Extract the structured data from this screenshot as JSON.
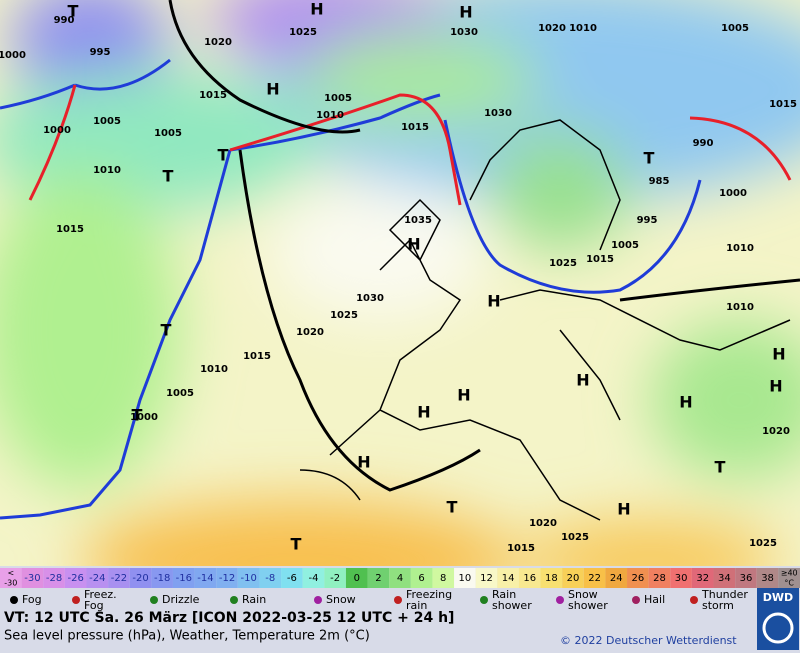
{
  "map": {
    "pressure_labels": [
      "1020",
      "1025",
      "1030",
      "1020",
      "1010",
      "1005",
      "1015",
      "990",
      "985",
      "995",
      "1000",
      "1005",
      "1010",
      "1025",
      "1015",
      "1030",
      "1015",
      "1010",
      "1005",
      "1005",
      "1015",
      "1005",
      "1000",
      "1010",
      "995",
      "990",
      "1000",
      "1015",
      "1035",
      "1030",
      "1025",
      "1020",
      "1015",
      "1010",
      "1005",
      "1000",
      "1020",
      "1025",
      "1015",
      "1020",
      "1025",
      "1010"
    ],
    "high_labels": [
      "H",
      "H",
      "H",
      "H",
      "H",
      "H",
      "H",
      "H",
      "H",
      "H",
      "H",
      "H",
      "H"
    ],
    "low_labels": [
      "T",
      "T",
      "T",
      "T",
      "T",
      "T",
      "T",
      "T",
      "T"
    ]
  },
  "color_scale": {
    "low": {
      "top": "<",
      "bottom": "-30",
      "color": "#e8a0e8"
    },
    "cells": [
      {
        "label": "-30",
        "color": "#e090e0"
      },
      {
        "label": "-28",
        "color": "#d890e8"
      },
      {
        "label": "-26",
        "color": "#c890f0"
      },
      {
        "label": "-24",
        "color": "#b890f0"
      },
      {
        "label": "-22",
        "color": "#a890f0"
      },
      {
        "label": "-20",
        "color": "#9090f0"
      },
      {
        "label": "-18",
        "color": "#8898f0"
      },
      {
        "label": "-16",
        "color": "#80a0f0"
      },
      {
        "label": "-14",
        "color": "#80a8f0"
      },
      {
        "label": "-12",
        "color": "#80b0f0"
      },
      {
        "label": "-10",
        "color": "#80c0f0"
      },
      {
        "label": "-8",
        "color": "#80d0f0"
      },
      {
        "label": "-6",
        "color": "#80e0f0"
      },
      {
        "label": "-4",
        "color": "#90f0e0"
      },
      {
        "label": "-2",
        "color": "#90f0c0"
      },
      {
        "label": "0",
        "color": "#50c050"
      },
      {
        "label": "2",
        "color": "#70d070"
      },
      {
        "label": "4",
        "color": "#90e080"
      },
      {
        "label": "6",
        "color": "#b0f090"
      },
      {
        "label": "8",
        "color": "#d0f8a0"
      },
      {
        "label": "10",
        "color": "#fafaf0"
      },
      {
        "label": "12",
        "color": "#f8f8c8"
      },
      {
        "label": "14",
        "color": "#f8f0a8"
      },
      {
        "label": "16",
        "color": "#f8e890"
      },
      {
        "label": "18",
        "color": "#f8e070"
      },
      {
        "label": "20",
        "color": "#f8d058"
      },
      {
        "label": "22",
        "color": "#f8c048"
      },
      {
        "label": "24",
        "color": "#f0a840"
      },
      {
        "label": "26",
        "color": "#f09050"
      },
      {
        "label": "28",
        "color": "#f08060"
      },
      {
        "label": "30",
        "color": "#f07070"
      },
      {
        "label": "32",
        "color": "#e06878"
      },
      {
        "label": "34",
        "color": "#d07078"
      },
      {
        "label": "36",
        "color": "#c07880"
      },
      {
        "label": "38",
        "color": "#b08888"
      }
    ],
    "high": {
      "top": "≥40",
      "bottom": "°C",
      "color": "#a09090"
    }
  },
  "weather_legend": [
    {
      "label": [
        "Fog"
      ]
    },
    {
      "label": [
        "Freez.",
        "Fog"
      ]
    },
    {
      "label": [
        "Drizzle"
      ]
    },
    {
      "label": [
        "Rain"
      ]
    },
    {
      "label": [
        "Snow"
      ]
    },
    {
      "label": [
        "Freezing",
        "rain"
      ]
    },
    {
      "label": [
        "Rain",
        "shower"
      ]
    },
    {
      "label": [
        "Snow",
        "shower"
      ]
    },
    {
      "label": [
        "Hail"
      ]
    },
    {
      "label": [
        "Thunder",
        "storm"
      ]
    }
  ],
  "footer": {
    "valid_time": "VT: 12 UTC Sa.  26 März [ICON 2022-03-25  12 UTC + 24 h]",
    "description": "Sea level pressure (hPa), Weather, Temperature 2m (°C)",
    "copyright": "© 2022 Deutscher Wetterdienst",
    "logo": "DWD"
  }
}
